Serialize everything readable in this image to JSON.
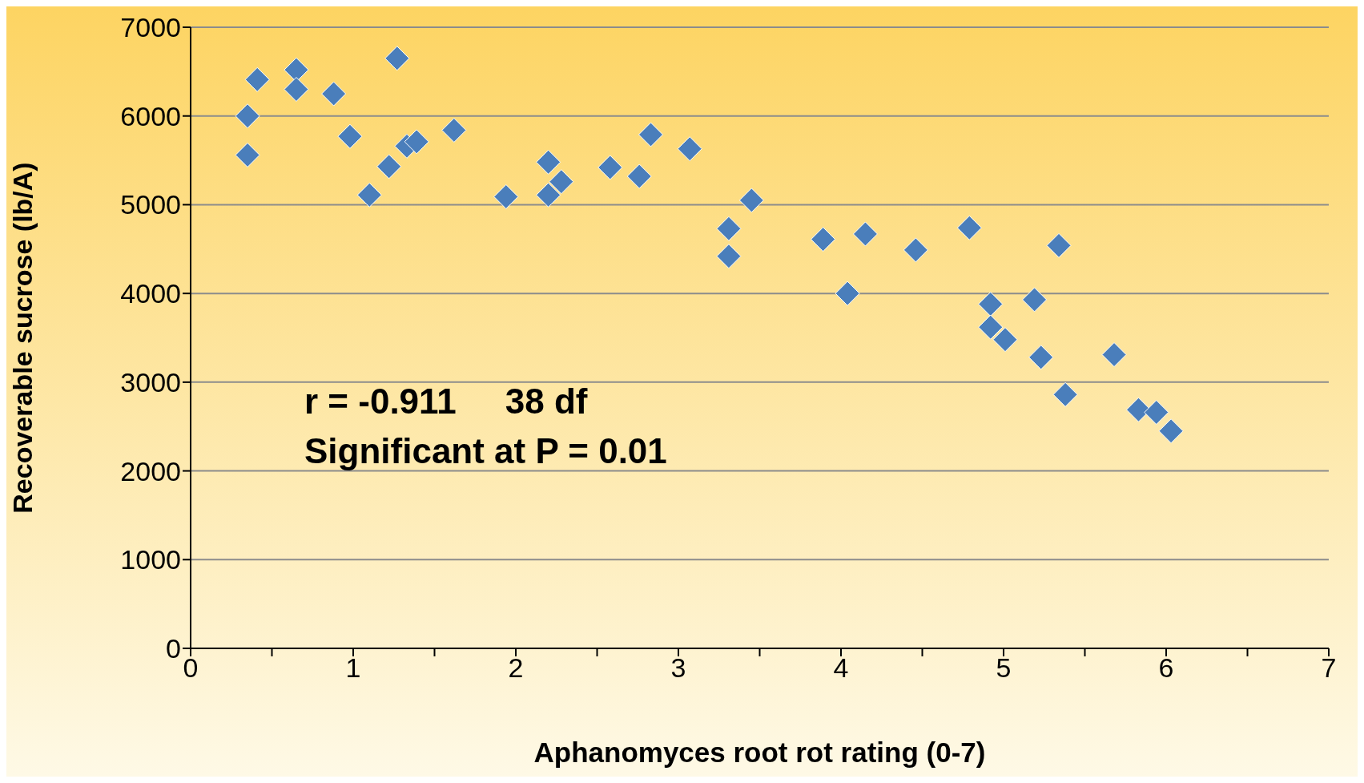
{
  "chart_data": {
    "type": "scatter",
    "xlabel": "Aphanomyces root rot rating (0-7)",
    "ylabel": "Recoverable sucrose (lb/A)",
    "annotations": [
      "r = -0.911     38 df",
      "Significant at P = 0.01"
    ],
    "x": [
      0.35,
      0.35,
      0.41,
      0.65,
      0.65,
      0.88,
      0.98,
      1.1,
      1.22,
      1.27,
      1.33,
      1.39,
      1.62,
      1.94,
      2.2,
      2.2,
      2.28,
      2.58,
      2.76,
      2.83,
      3.07,
      3.31,
      3.31,
      3.45,
      3.89,
      4.04,
      4.15,
      4.46,
      4.79,
      4.92,
      4.92,
      5.01,
      5.19,
      5.34,
      5.23,
      5.38,
      5.68,
      5.83,
      5.94,
      6.03
    ],
    "series": [
      {
        "color": "#4a7ebb",
        "values": [
          6000,
          5560,
          6410,
          6520,
          6300,
          6250,
          5770,
          5110,
          5430,
          6650,
          5660,
          5710,
          5840,
          5090,
          5480,
          5110,
          5260,
          5420,
          5320,
          5790,
          5630,
          4730,
          4420,
          5050,
          4610,
          4000,
          4670,
          4490,
          4740,
          3880,
          3620,
          3480,
          3930,
          4540,
          3280,
          2860,
          3310,
          2690,
          2660,
          2450
        ]
      }
    ],
    "xlim": [
      0,
      7
    ],
    "xticks": [
      0,
      {
        "value": 0.5,
        "label": null
      },
      1,
      {
        "value": 1.5,
        "label": null
      },
      2,
      {
        "value": 2.5,
        "label": null
      },
      3,
      {
        "value": 3.5,
        "label": null
      },
      4,
      {
        "value": 4.5,
        "label": null
      },
      5,
      {
        "value": 5.5,
        "label": null
      },
      6,
      {
        "value": 6.5,
        "label": null
      },
      7
    ],
    "ylim": [
      0,
      7000
    ],
    "yticks": [
      0,
      1000,
      2000,
      3000,
      4000,
      5000,
      6000,
      7000
    ],
    "grid": "y",
    "marker": "diamond",
    "legend": false
  }
}
